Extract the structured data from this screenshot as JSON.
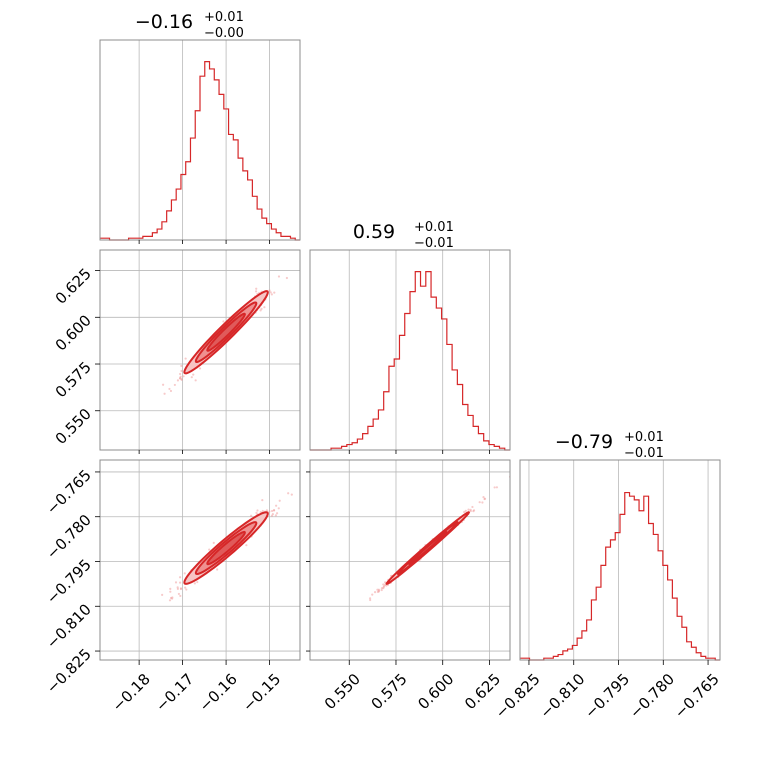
{
  "chart_data": {
    "type": "corner",
    "color": "#d62728",
    "grid": true,
    "parameters": [
      {
        "title": {
          "main": "−0.16",
          "sup": "+0.01",
          "sub": "−0.00"
        },
        "mean": -0.16,
        "sd": 0.0048,
        "lim": [
          -0.189,
          -0.143
        ],
        "ticks": [
          -0.18,
          -0.17,
          -0.16,
          -0.15
        ],
        "tick_labels": [
          "−0.18",
          "−0.17",
          "−0.16",
          "−0.15"
        ]
      },
      {
        "title": {
          "main": "0.59",
          "sup": "+0.01",
          "sub": "−0.01"
        },
        "mean": 0.592,
        "sd": 0.011,
        "lim": [
          0.529,
          0.636
        ],
        "ticks": [
          0.55,
          0.575,
          0.6,
          0.625
        ],
        "tick_labels": [
          "0.550",
          "0.575",
          "0.600",
          "0.625"
        ]
      },
      {
        "title": {
          "main": "−0.79",
          "sup": "+0.01",
          "sub": "−0.01"
        },
        "mean": -0.7905,
        "sd": 0.006,
        "lim": [
          -0.828,
          -0.761
        ],
        "ticks": [
          -0.825,
          -0.81,
          -0.795,
          -0.78,
          -0.765
        ],
        "tick_labels": [
          "−0.825",
          "−0.810",
          "−0.795",
          "−0.780",
          "−0.765"
        ]
      }
    ],
    "histograms": [
      [
        0.01,
        0.01,
        0.0,
        0.0,
        0.0,
        0.0,
        0.01,
        0.01,
        0.01,
        0.02,
        0.02,
        0.04,
        0.06,
        0.1,
        0.16,
        0.22,
        0.28,
        0.36,
        0.43,
        0.56,
        0.71,
        0.9,
        0.98,
        0.94,
        0.88,
        0.8,
        0.72,
        0.58,
        0.55,
        0.45,
        0.38,
        0.33,
        0.24,
        0.17,
        0.12,
        0.09,
        0.06,
        0.04,
        0.02,
        0.02,
        0.01,
        0.0
      ],
      [
        0.0,
        0.0,
        0.0,
        0.0,
        0.01,
        0.01,
        0.02,
        0.03,
        0.04,
        0.06,
        0.09,
        0.13,
        0.17,
        0.22,
        0.32,
        0.46,
        0.5,
        0.63,
        0.75,
        0.87,
        0.98,
        0.9,
        0.98,
        0.84,
        0.78,
        0.72,
        0.58,
        0.44,
        0.36,
        0.25,
        0.19,
        0.13,
        0.09,
        0.05,
        0.03,
        0.02,
        0.01,
        0.0
      ],
      [
        0.01,
        0.01,
        0.0,
        0.0,
        0.0,
        0.01,
        0.01,
        0.02,
        0.03,
        0.05,
        0.06,
        0.08,
        0.12,
        0.16,
        0.22,
        0.33,
        0.4,
        0.52,
        0.62,
        0.66,
        0.7,
        0.8,
        0.92,
        0.9,
        0.88,
        0.82,
        0.9,
        0.75,
        0.69,
        0.6,
        0.52,
        0.44,
        0.34,
        0.24,
        0.18,
        0.1,
        0.07,
        0.04,
        0.02,
        0.01,
        0.01,
        0.0
      ]
    ],
    "correlations": {
      "1-0": 0.97,
      "2-0": 0.96,
      "2-1": 0.995
    }
  }
}
